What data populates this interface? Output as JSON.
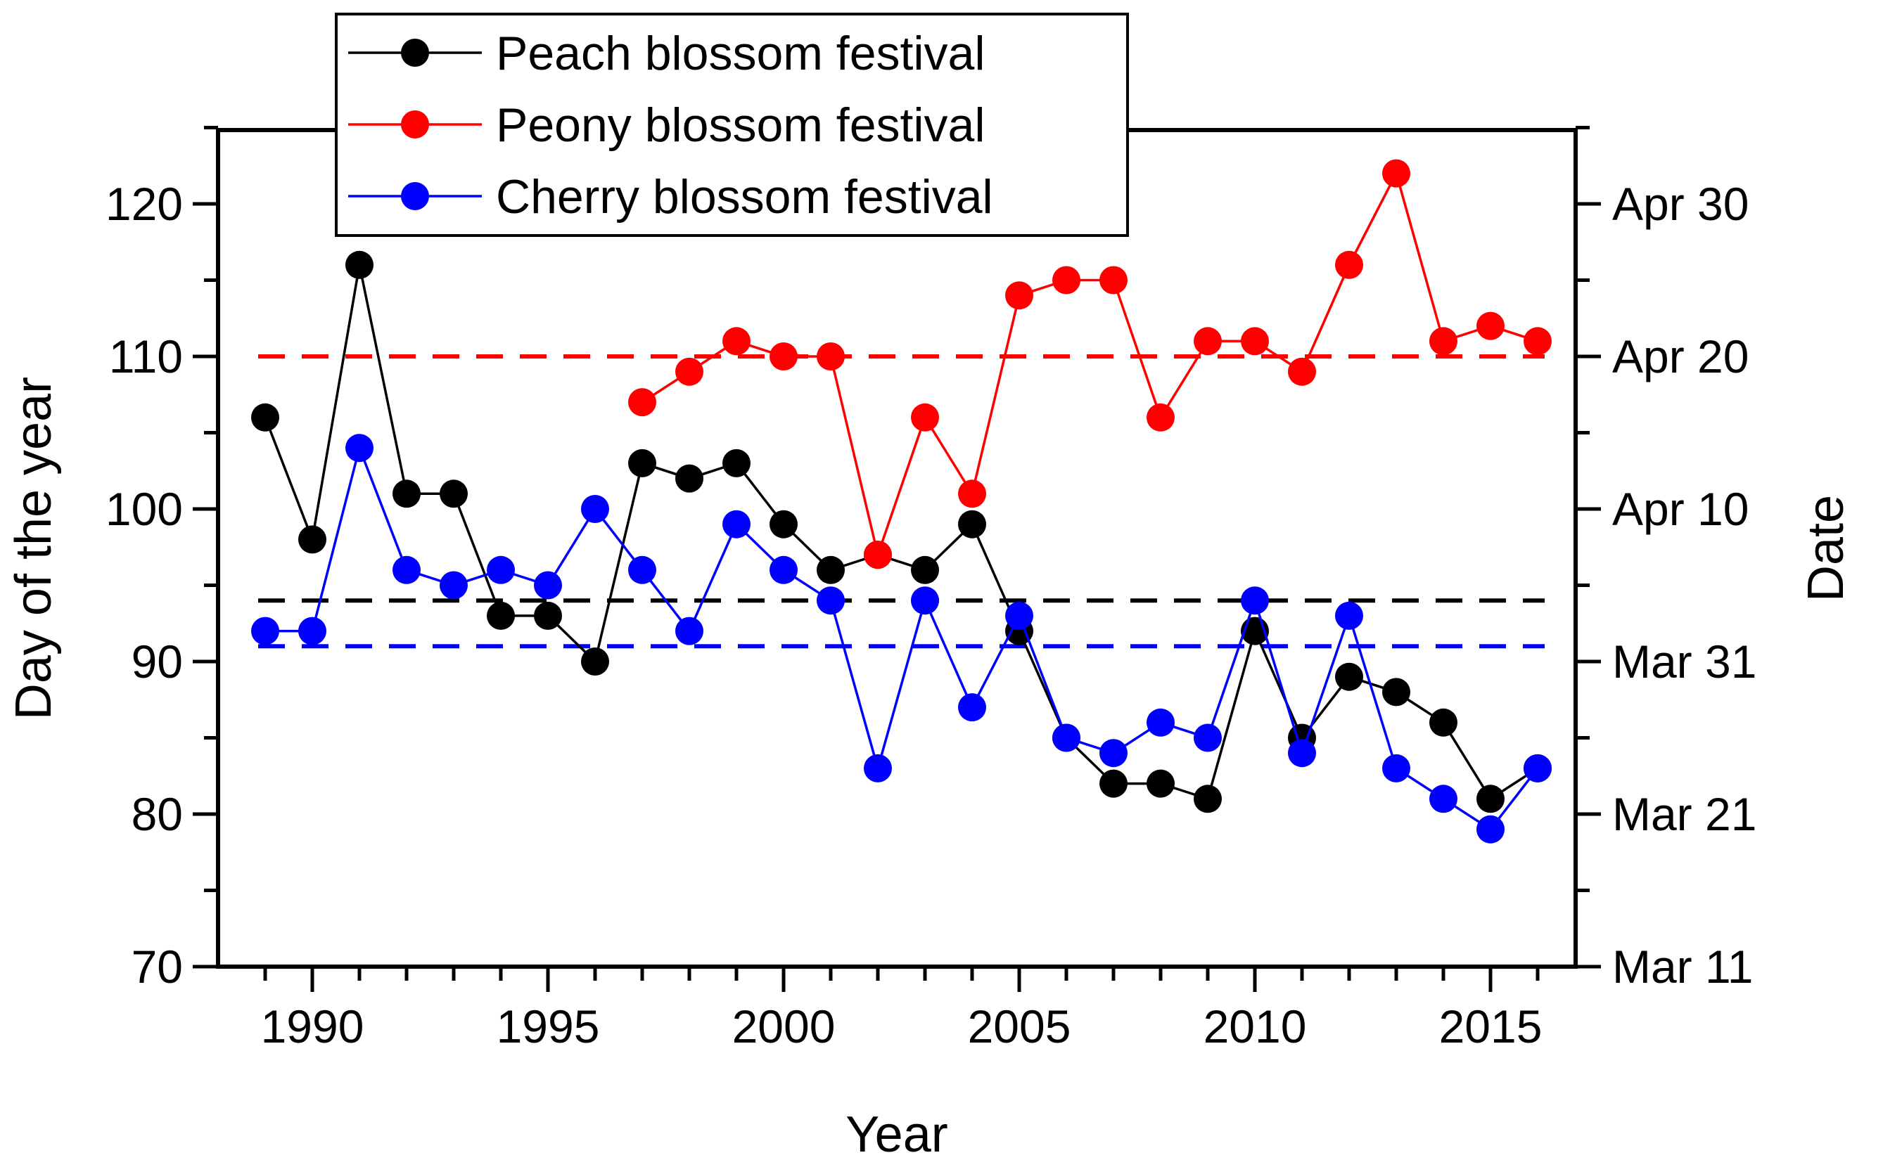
{
  "chart_data": {
    "type": "line",
    "xlabel": "Year",
    "ylabel": "Day of the year",
    "y2label": "Date",
    "xlim": [
      1988,
      2017
    ],
    "ylim": [
      70,
      125
    ],
    "x_ticks": [
      1990,
      1995,
      2000,
      2005,
      2010,
      2015
    ],
    "y_ticks": [
      70,
      80,
      90,
      100,
      110,
      120
    ],
    "y2_ticks": [
      {
        "value": 70,
        "label": "Mar 11"
      },
      {
        "value": 80,
        "label": "Mar 21"
      },
      {
        "value": 90,
        "label": "Mar 31"
      },
      {
        "value": 100,
        "label": "Apr 10"
      },
      {
        "value": 110,
        "label": "Apr 20"
      },
      {
        "value": 120,
        "label": "Apr 30"
      }
    ],
    "legend_position": "top-left",
    "series": [
      {
        "name": "Peach blossom festival",
        "color": "#000000",
        "mean": 94,
        "x": [
          1989,
          1990,
          1991,
          1992,
          1993,
          1994,
          1995,
          1996,
          1997,
          1998,
          1999,
          2000,
          2001,
          2002,
          2003,
          2004,
          2005,
          2006,
          2007,
          2008,
          2009,
          2010,
          2011,
          2012,
          2013,
          2014,
          2015,
          2016
        ],
        "values": [
          106,
          98,
          116,
          101,
          101,
          93,
          93,
          90,
          103,
          102,
          103,
          99,
          96,
          97,
          96,
          99,
          92,
          85,
          82,
          82,
          81,
          92,
          85,
          89,
          88,
          86,
          81,
          83
        ]
      },
      {
        "name": "Peony blossom festival",
        "color": "#ff0000",
        "mean": 110,
        "x": [
          1997,
          1998,
          1999,
          2000,
          2001,
          2002,
          2003,
          2004,
          2005,
          2006,
          2007,
          2008,
          2009,
          2010,
          2011,
          2012,
          2013,
          2014,
          2015,
          2016
        ],
        "values": [
          107,
          109,
          111,
          110,
          110,
          97,
          106,
          101,
          114,
          115,
          115,
          106,
          111,
          111,
          109,
          116,
          122,
          111,
          112,
          111
        ]
      },
      {
        "name": "Cherry blossom festival",
        "color": "#0000ff",
        "mean": 91,
        "x": [
          1989,
          1990,
          1991,
          1992,
          1993,
          1994,
          1995,
          1996,
          1997,
          1998,
          1999,
          2000,
          2001,
          2002,
          2003,
          2004,
          2005,
          2006,
          2007,
          2008,
          2009,
          2010,
          2011,
          2012,
          2013,
          2014,
          2015,
          2016
        ],
        "values": [
          92,
          92,
          104,
          96,
          95,
          96,
          95,
          100,
          96,
          92,
          99,
          96,
          94,
          83,
          94,
          87,
          93,
          85,
          84,
          86,
          85,
          94,
          84,
          93,
          83,
          81,
          79,
          83
        ]
      }
    ]
  }
}
